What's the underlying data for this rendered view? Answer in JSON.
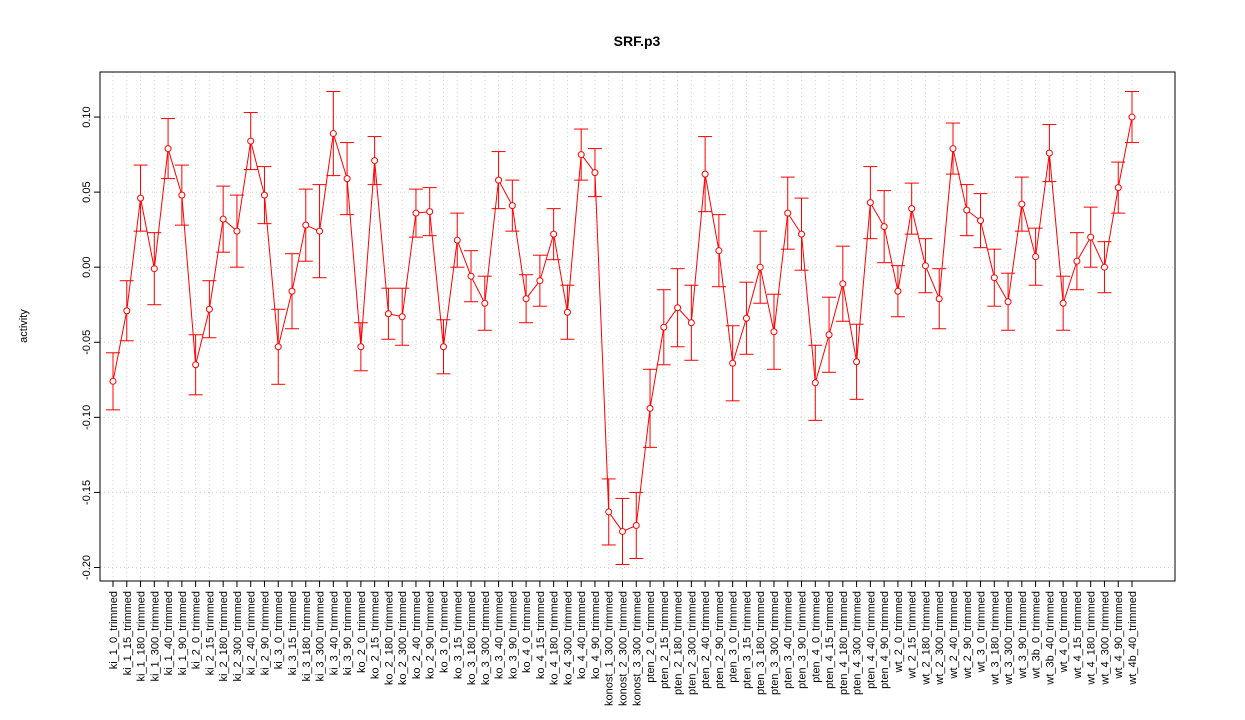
{
  "chart_data": {
    "type": "line",
    "title": "SRF.p3",
    "ylabel": "activity",
    "categories": [
      "ki_1_0_trimmed",
      "ki_1_15_trimmed",
      "ki_1_180_trimmed",
      "ki_1_300_trimmed",
      "ki_1_40_trimmed",
      "ki_1_90_trimmed",
      "ki_2_0_trimmed",
      "ki_2_15_trimmed",
      "ki_2_180_trimmed",
      "ki_2_300_trimmed",
      "ki_2_40_trimmed",
      "ki_2_90_trimmed",
      "ki_3_0_trimmed",
      "ki_3_15_trimmed",
      "ki_3_180_trimmed",
      "ki_3_300_trimmed",
      "ki_3_40_trimmed",
      "ki_3_90_trimmed",
      "ko_2_0_trimmed",
      "ko_2_15_trimmed",
      "ko_2_180_trimmed",
      "ko_2_300_trimmed",
      "ko_2_40_trimmed",
      "ko_2_90_trimmed",
      "ko_3_0_trimmed",
      "ko_3_15_trimmed",
      "ko_3_180_trimmed",
      "ko_3_300_trimmed",
      "ko_3_40_trimmed",
      "ko_3_90_trimmed",
      "ko_4_0_trimmed",
      "ko_4_15_trimmed",
      "ko_4_180_trimmed",
      "ko_4_300_trimmed",
      "ko_4_40_trimmed",
      "ko_4_90_trimmed",
      "konost_1_300_trimmed",
      "konost_2_300_trimmed",
      "konost_3_300_trimmed",
      "pten_2_0_trimmed",
      "pten_2_15_trimmed",
      "pten_2_180_trimmed",
      "pten_2_300_trimmed",
      "pten_2_40_trimmed",
      "pten_2_90_trimmed",
      "pten_3_0_trimmed",
      "pten_3_15_trimmed",
      "pten_3_180_trimmed",
      "pten_3_300_trimmed",
      "pten_3_40_trimmed",
      "pten_3_90_trimmed",
      "pten_4_0_trimmed",
      "pten_4_15_trimmed",
      "pten_4_180_trimmed",
      "pten_4_300_trimmed",
      "pten_4_40_trimmed",
      "pten_4_90_trimmed",
      "wt_2_0_trimmed",
      "wt_2_15_trimmed",
      "wt_2_180_trimmed",
      "wt_2_300_trimmed",
      "wt_2_40_trimmed",
      "wt_2_90_trimmed",
      "wt_3_0_trimmed",
      "wt_3_180_trimmed",
      "wt_3_300_trimmed",
      "wt_3_90_trimmed",
      "wt_3b_0_trimmed",
      "wt_3b_40_trimmed",
      "wt_4_0_trimmed",
      "wt_4_15_trimmed",
      "wt_4_180_trimmed",
      "wt_4_300_trimmed",
      "wt_4_90_trimmed",
      "wt_4b_40_trimmed"
    ],
    "values": [
      -0.076,
      -0.029,
      0.046,
      -0.001,
      0.079,
      0.048,
      -0.065,
      -0.028,
      0.032,
      0.024,
      0.084,
      0.048,
      -0.053,
      -0.016,
      0.028,
      0.024,
      0.089,
      0.059,
      -0.053,
      0.071,
      -0.031,
      -0.033,
      0.036,
      0.037,
      -0.053,
      0.018,
      -0.006,
      -0.024,
      0.058,
      0.041,
      -0.021,
      -0.009,
      0.022,
      -0.03,
      0.075,
      0.063,
      -0.163,
      -0.176,
      -0.172,
      -0.094,
      -0.04,
      -0.027,
      -0.037,
      0.062,
      0.011,
      -0.064,
      -0.034,
      0.0,
      -0.043,
      0.036,
      0.022,
      -0.077,
      -0.045,
      -0.011,
      -0.063,
      0.043,
      0.027,
      -0.016,
      0.039,
      0.001,
      -0.021,
      0.079,
      0.038,
      0.031,
      -0.007,
      -0.023,
      0.042,
      0.007,
      0.076,
      -0.024,
      0.004,
      0.02,
      0.0,
      0.053,
      0.1
    ],
    "errors": [
      0.019,
      0.02,
      0.022,
      0.024,
      0.02,
      0.02,
      0.02,
      0.019,
      0.022,
      0.024,
      0.019,
      0.019,
      0.025,
      0.025,
      0.024,
      0.031,
      0.028,
      0.024,
      0.016,
      0.016,
      0.017,
      0.019,
      0.016,
      0.016,
      0.018,
      0.018,
      0.017,
      0.018,
      0.019,
      0.017,
      0.016,
      0.017,
      0.017,
      0.018,
      0.017,
      0.016,
      0.022,
      0.022,
      0.022,
      0.026,
      0.025,
      0.026,
      0.025,
      0.025,
      0.024,
      0.025,
      0.024,
      0.024,
      0.025,
      0.024,
      0.024,
      0.025,
      0.025,
      0.025,
      0.025,
      0.024,
      0.024,
      0.017,
      0.017,
      0.018,
      0.02,
      0.017,
      0.017,
      0.018,
      0.019,
      0.019,
      0.018,
      0.019,
      0.019,
      0.018,
      0.019,
      0.02,
      0.017,
      0.017,
      0.017
    ],
    "color": "#ff0000",
    "ylim": [
      -0.209,
      0.13
    ],
    "yticks": [
      {
        "value": -0.2,
        "label": "-0.20"
      },
      {
        "value": -0.15,
        "label": "-0.15"
      },
      {
        "value": -0.1,
        "label": "-0.10"
      },
      {
        "value": -0.05,
        "label": "-0.05"
      },
      {
        "value": 0,
        "label": "0.00"
      },
      {
        "value": 0.05,
        "label": "0.05"
      },
      {
        "value": 0.1,
        "label": "0.10"
      }
    ],
    "grid": true
  }
}
